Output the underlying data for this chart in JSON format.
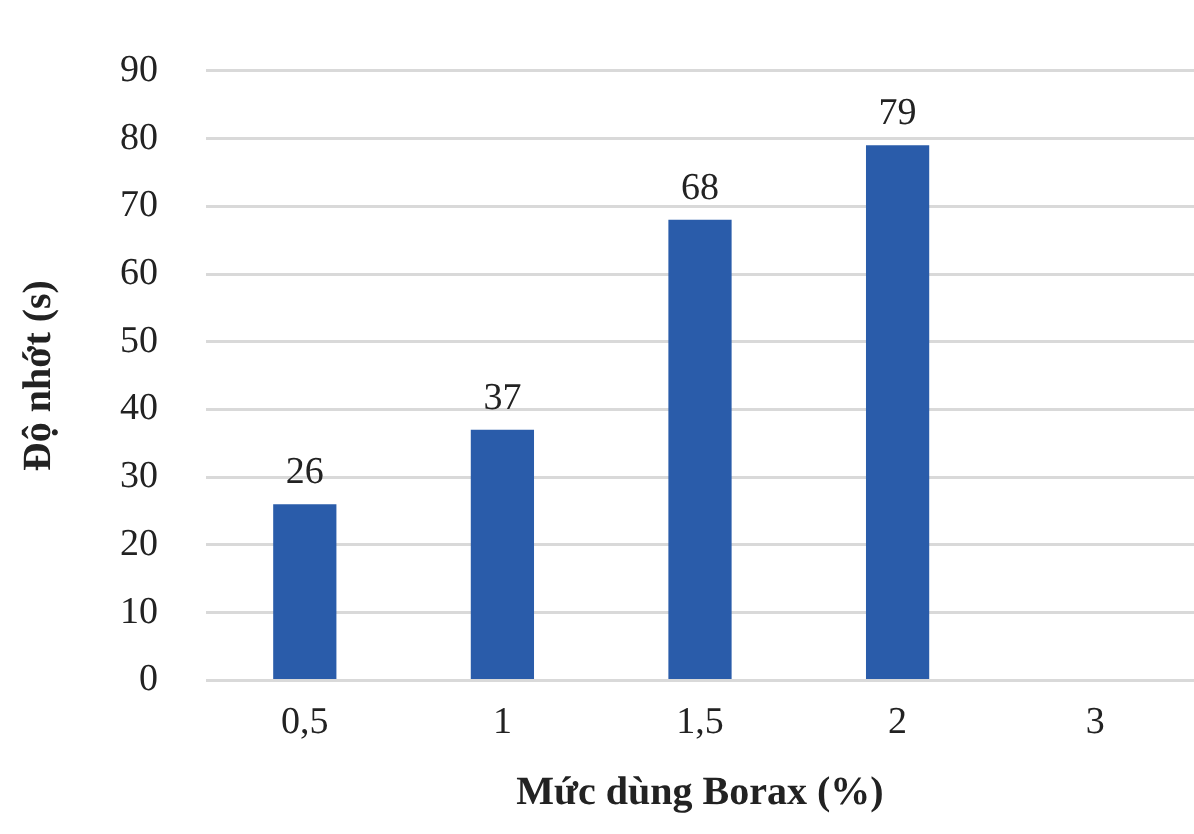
{
  "chart_data": {
    "type": "bar",
    "xlabel": "Mức dùng Borax (%)",
    "ylabel": "Độ nhớt (s)",
    "categories": [
      "0,5",
      "1",
      "1,5",
      "2",
      "3"
    ],
    "values": [
      26,
      37,
      68,
      79,
      null
    ],
    "color": "#2a5caa",
    "ylim": [
      0,
      90
    ],
    "yticks": [
      0,
      10,
      20,
      30,
      40,
      50,
      60,
      70,
      80,
      90
    ],
    "grid": "y",
    "data_labels": true
  }
}
